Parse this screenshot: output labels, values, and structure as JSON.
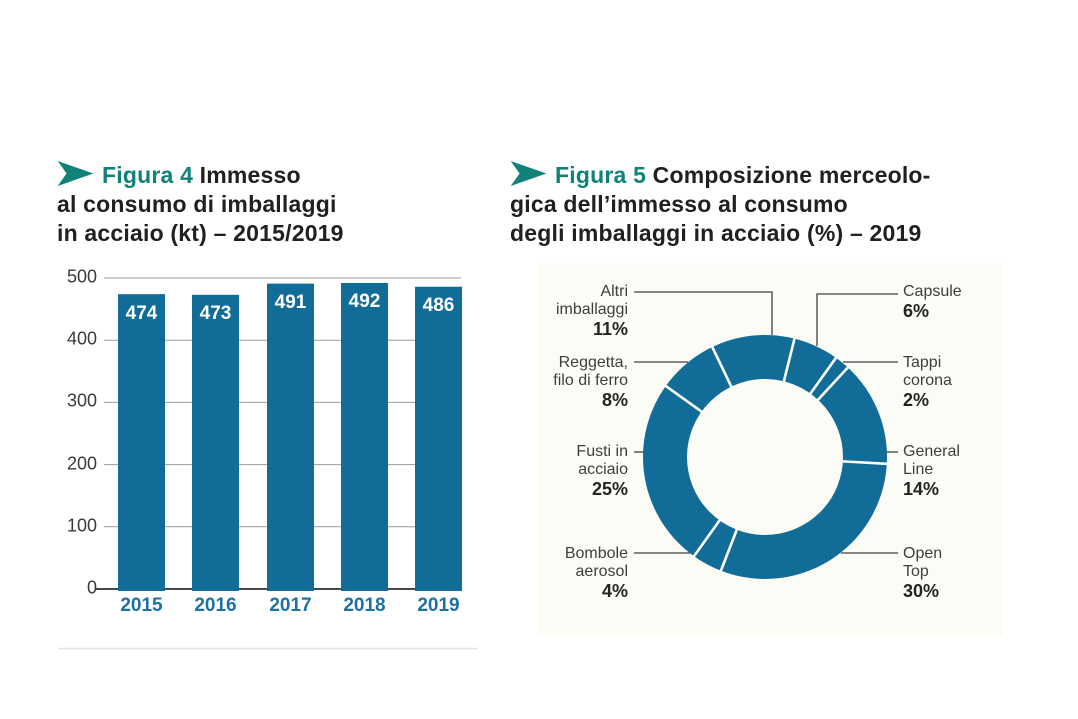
{
  "colors": {
    "accent_teal": "#0f8279",
    "chart_blue": "#116d98",
    "year_label_blue": "#1e71a3",
    "title_text": "#22201f",
    "tick_text": "#3b3b3b",
    "gridline": "#9b9b9b",
    "axis": "#474747",
    "leader_line": "#404040",
    "panel_background": "#fcfcf6",
    "divider_rule": "#e7e4e4"
  },
  "figure4": {
    "label": "Figura 4",
    "title_rest": "Immesso\nal consumo di imballaggi\nin acciaio (kt) – 2015/2019"
  },
  "figure5": {
    "label": "Figura 5",
    "title_rest": "Composizione merceolo-\ngica dell’immesso al consumo\ndegli imballaggi in acciaio (%) – 2019",
    "labels": [
      {
        "key": "altri",
        "name": "Altri\nimballaggi",
        "value": "11%"
      },
      {
        "key": "reggetta",
        "name": "Reggetta,\nfilo di ferro",
        "value": "8%"
      },
      {
        "key": "fusti",
        "name": "Fusti in\nacciaio",
        "value": "25%"
      },
      {
        "key": "bombole",
        "name": "Bombole\naerosol",
        "value": "4%"
      },
      {
        "key": "capsule",
        "name": "Capsule",
        "value": "6%"
      },
      {
        "key": "tappi",
        "name": "Tappi\ncorona",
        "value": "2%"
      },
      {
        "key": "general",
        "name": "General\nLine",
        "value": "14%"
      },
      {
        "key": "open",
        "name": "Open\nTop",
        "value": "30%"
      }
    ]
  },
  "chart_data": [
    {
      "id": "immesso-consumo-bar",
      "type": "bar",
      "title": "Figura 4 Immesso al consumo di imballaggi in acciaio (kt) – 2015/2019",
      "categories": [
        "2015",
        "2016",
        "2017",
        "2018",
        "2019"
      ],
      "values": [
        474,
        473,
        491,
        492,
        486
      ],
      "xlabel": "",
      "ylabel": "",
      "ylim": [
        0,
        500
      ],
      "yticks": [
        0,
        100,
        200,
        300,
        400,
        500
      ],
      "grid": true,
      "bar_color": "#116d98",
      "value_labels_inside_bars": true
    },
    {
      "id": "composizione-merceologica-donut",
      "type": "pie",
      "subtype": "donut",
      "title": "Figura 5 Composizione merceologica dell’immesso al consumo degli imballaggi in acciaio (%) – 2019",
      "start_angle_deg_clockwise_from_top": 14,
      "single_color": "#116d98",
      "segments": [
        {
          "label": "Capsule",
          "pct": 6
        },
        {
          "label": "Tappi corona",
          "pct": 2
        },
        {
          "label": "General Line",
          "pct": 14
        },
        {
          "label": "Open Top",
          "pct": 30
        },
        {
          "label": "Bombole aerosol",
          "pct": 4
        },
        {
          "label": "Fusti in acciaio",
          "pct": 25
        },
        {
          "label": "Reggetta, filo di ferro",
          "pct": 8
        },
        {
          "label": "Altri imballaggi",
          "pct": 11
        }
      ]
    }
  ]
}
